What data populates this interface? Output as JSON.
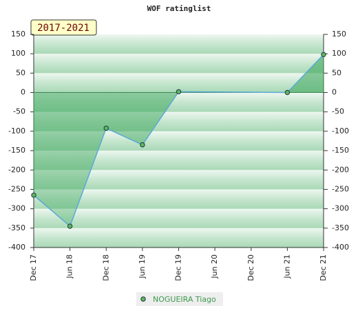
{
  "chart_data": {
    "type": "line",
    "title": "WOF ratinglist",
    "badge": "2017-2021",
    "categories": [
      "Dec 17",
      "Jun 18",
      "Dec 18",
      "Jun 19",
      "Dec 19",
      "Jun 20",
      "Dec 20",
      "Jun 21",
      "Dec 21"
    ],
    "series": [
      {
        "name": "NOGUEIRA Tiago",
        "color": "#5aa9d6",
        "marker_color": "#5cb85c",
        "x": [
          "Dec 17",
          "Jun 18",
          "Dec 18",
          "Jun 19",
          "Dec 19",
          "Jun 21",
          "Dec 21"
        ],
        "values": [
          -265,
          -345,
          -92,
          -135,
          2,
          0,
          98
        ]
      }
    ],
    "ylim": [
      -400,
      150
    ],
    "yticks": [
      -400,
      -350,
      -300,
      -250,
      -200,
      -150,
      -100,
      -50,
      0,
      50,
      100,
      150
    ],
    "y2lim": [
      -400,
      150
    ],
    "y2ticks": [
      -400,
      -350,
      -300,
      -250,
      -200,
      -150,
      -100,
      -50,
      0,
      50,
      100,
      150
    ],
    "legend": "bottom"
  }
}
